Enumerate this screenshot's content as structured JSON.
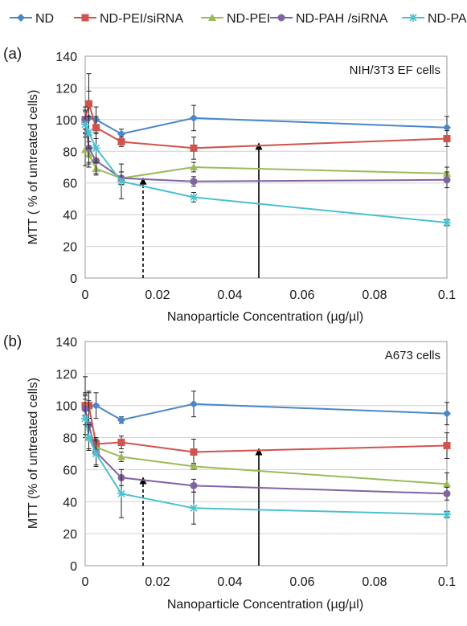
{
  "legend": {
    "entries": [
      {
        "key": "nd",
        "label": "ND",
        "color": "#4a86c8",
        "marker": "diamond"
      },
      {
        "key": "nd_pei_sirna",
        "label": "ND-PEI/siRNA",
        "color": "#d0534e",
        "marker": "square"
      },
      {
        "key": "nd_pei",
        "label": "ND-PEI",
        "color": "#9bbb59",
        "marker": "triangle"
      },
      {
        "key": "nd_pah_sirna",
        "label": "ND-PAH /siRNA",
        "color": "#8064a2",
        "marker": "circle"
      },
      {
        "key": "nd_pah",
        "label": "ND-PAH",
        "color": "#4bc0cf",
        "marker": "star"
      }
    ]
  },
  "chart_data": [
    {
      "type": "line",
      "panel_label": "(a)",
      "annotation": "NIH/3T3 EF cells",
      "xlabel": "Nanoparticle Concentration (µg/µl)",
      "ylabel": "MTT ( % of untreated cells)",
      "xlim": [
        0,
        0.1
      ],
      "ylim": [
        0,
        140
      ],
      "x_ticks": [
        0,
        0.02,
        0.04,
        0.06,
        0.08,
        0.1
      ],
      "x_tick_labels": [
        "0",
        "0.02",
        "0.04",
        "0.06",
        "0.08",
        "0.1"
      ],
      "y_ticks": [
        0,
        20,
        40,
        60,
        80,
        100,
        120,
        140
      ],
      "y_tick_labels": [
        "0",
        "20",
        "40",
        "60",
        "80",
        "100",
        "120",
        "140"
      ],
      "grid": "horizontal",
      "x": [
        0,
        0.001,
        0.003,
        0.01,
        0.03,
        0.1
      ],
      "series": [
        {
          "key": "nd",
          "name": "ND",
          "values": [
            100,
            101,
            100,
            91,
            101,
            95
          ],
          "errors": [
            6,
            28,
            8,
            3,
            8,
            7
          ]
        },
        {
          "key": "nd_pei_sirna",
          "name": "ND-PEI/siRNA",
          "values": [
            100,
            110,
            95,
            86,
            82,
            88
          ],
          "errors": [
            6,
            8,
            7,
            3,
            7,
            5
          ]
        },
        {
          "key": "nd_pei",
          "name": "ND-PEI",
          "values": [
            81,
            78,
            69,
            63,
            70,
            66
          ],
          "errors": [
            10,
            8,
            4,
            4,
            3,
            4
          ]
        },
        {
          "key": "nd_pah_sirna",
          "name": "ND-PAH /siRNA",
          "values": [
            100,
            82,
            74,
            63,
            61,
            62
          ],
          "errors": [
            8,
            10,
            8,
            4,
            3,
            5
          ]
        },
        {
          "key": "nd_pah",
          "name": "ND-PAH",
          "values": [
            97,
            92,
            82,
            61,
            51,
            35
          ],
          "errors": [
            8,
            10,
            9,
            11,
            3,
            2
          ]
        }
      ],
      "arrows": [
        {
          "x": 0.016,
          "from_y": 0,
          "to_y": 63,
          "style": "dashed"
        },
        {
          "x": 0.048,
          "from_y": 0,
          "to_y": 85,
          "style": "solid"
        }
      ]
    },
    {
      "type": "line",
      "panel_label": "(b)",
      "annotation": "A673 cells",
      "xlabel": "Nanoparticle Concentration (µg/µl)",
      "ylabel": "MTT (% of untreated cells)",
      "xlim": [
        0,
        0.1
      ],
      "ylim": [
        0,
        140
      ],
      "x_ticks": [
        0,
        0.02,
        0.04,
        0.06,
        0.08,
        0.1
      ],
      "x_tick_labels": [
        "0",
        "0.02",
        "0.04",
        "0.06",
        "0.08",
        "0.1"
      ],
      "y_ticks": [
        0,
        20,
        40,
        60,
        80,
        100,
        120,
        140
      ],
      "y_tick_labels": [
        "0",
        "20",
        "40",
        "60",
        "80",
        "100",
        "120",
        "140"
      ],
      "grid": "horizontal",
      "x": [
        0,
        0.001,
        0.003,
        0.01,
        0.03,
        0.1
      ],
      "series": [
        {
          "key": "nd",
          "name": "ND",
          "values": [
            100,
            99,
            100,
            91,
            101,
            95
          ],
          "errors": [
            18,
            10,
            8,
            2,
            8,
            7
          ]
        },
        {
          "key": "nd_pei_sirna",
          "name": "ND-PEI/siRNA",
          "values": [
            100,
            100,
            76,
            77,
            71,
            75
          ],
          "errors": [
            6,
            8,
            4,
            4,
            8,
            8
          ]
        },
        {
          "key": "nd_pei",
          "name": "ND-PEI",
          "values": [
            99,
            80,
            74,
            68,
            62,
            51
          ],
          "errors": [
            8,
            8,
            5,
            3,
            2,
            7
          ]
        },
        {
          "key": "nd_pah_sirna",
          "name": "ND-PAH /siRNA",
          "values": [
            98,
            88,
            71,
            55,
            50,
            45
          ],
          "errors": [
            10,
            15,
            8,
            5,
            4,
            4
          ]
        },
        {
          "key": "nd_pah",
          "name": "ND-PAH",
          "values": [
            92,
            80,
            70,
            45,
            36,
            32
          ],
          "errors": [
            12,
            8,
            8,
            15,
            10,
            2
          ]
        }
      ],
      "arrows": [
        {
          "x": 0.016,
          "from_y": 0,
          "to_y": 55,
          "style": "dashed"
        },
        {
          "x": 0.048,
          "from_y": 0,
          "to_y": 73,
          "style": "solid"
        }
      ]
    }
  ]
}
